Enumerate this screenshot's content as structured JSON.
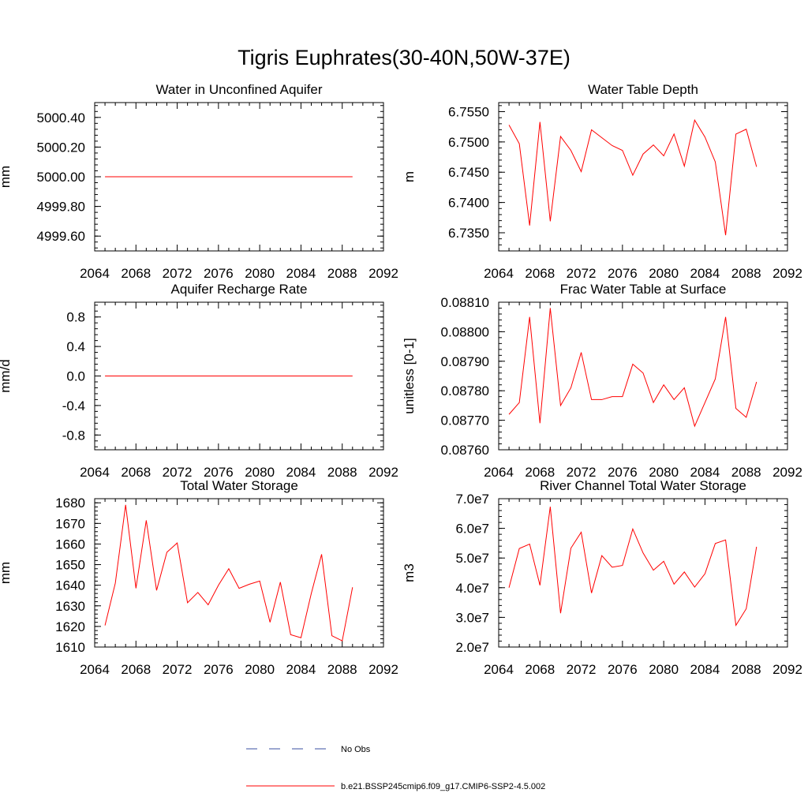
{
  "title": "Tigris Euphrates(30-40N,50W-37E)",
  "legend": [
    {
      "label": "No Obs",
      "color": "#3a4fa0",
      "dash": "dashed"
    },
    {
      "label": "b.e21.BSSP245cmip6.f09_g17.CMIP6-SSP2-4.5.002",
      "color": "#ff0000",
      "dash": "solid"
    }
  ],
  "chart_data": [
    {
      "type": "line",
      "title": "Water in Unconfined Aquifer",
      "xlabel": "",
      "ylabel": "mm",
      "xlim": [
        2064,
        2092
      ],
      "ylim": [
        4999.5,
        5000.5
      ],
      "xticks": [
        2064,
        2068,
        2072,
        2076,
        2080,
        2084,
        2088,
        2092
      ],
      "yticks": [
        4999.6,
        4999.8,
        5000.0,
        5000.2,
        5000.4
      ],
      "ytick_labels": [
        "4999.60",
        "4999.80",
        "5000.00",
        "5000.20",
        "5000.40"
      ],
      "x": [
        2065,
        2066,
        2067,
        2068,
        2069,
        2070,
        2071,
        2072,
        2073,
        2074,
        2075,
        2076,
        2077,
        2078,
        2079,
        2080,
        2081,
        2082,
        2083,
        2084,
        2085,
        2086,
        2087,
        2088,
        2089
      ],
      "series": [
        {
          "name": "b.e21.BSSP245cmip6.f09_g17.CMIP6-SSP2-4.5.002",
          "color": "#ff0000",
          "values": [
            5000,
            5000,
            5000,
            5000,
            5000,
            5000,
            5000,
            5000,
            5000,
            5000,
            5000,
            5000,
            5000,
            5000,
            5000,
            5000,
            5000,
            5000,
            5000,
            5000,
            5000,
            5000,
            5000,
            5000,
            5000
          ]
        }
      ]
    },
    {
      "type": "line",
      "title": "Water Table Depth",
      "xlabel": "",
      "ylabel": "m",
      "xlim": [
        2064,
        2092
      ],
      "ylim": [
        6.732,
        6.7565
      ],
      "xticks": [
        2064,
        2068,
        2072,
        2076,
        2080,
        2084,
        2088,
        2092
      ],
      "yticks": [
        6.735,
        6.74,
        6.745,
        6.75,
        6.755
      ],
      "ytick_labels": [
        "6.7350",
        "6.7400",
        "6.7450",
        "6.7500",
        "6.7550"
      ],
      "x": [
        2065,
        2066,
        2067,
        2068,
        2069,
        2070,
        2071,
        2072,
        2073,
        2074,
        2075,
        2076,
        2077,
        2078,
        2079,
        2080,
        2081,
        2082,
        2083,
        2084,
        2085,
        2086,
        2087,
        2088,
        2089
      ],
      "series": [
        {
          "name": "b.e21.BSSP245cmip6.f09_g17.CMIP6-SSP2-4.5.002",
          "color": "#ff0000",
          "values": [
            6.7528,
            6.7497,
            6.7362,
            6.7533,
            6.7369,
            6.7509,
            6.7486,
            6.7451,
            6.752,
            6.7507,
            6.7494,
            6.7486,
            6.7445,
            6.748,
            6.7495,
            6.7477,
            6.7513,
            6.746,
            6.7536,
            6.7508,
            6.7467,
            6.7346,
            6.7513,
            6.7521,
            6.7459
          ]
        }
      ]
    },
    {
      "type": "line",
      "title": "Aquifer Recharge Rate",
      "xlabel": "",
      "ylabel": "mm/d",
      "xlim": [
        2064,
        2092
      ],
      "ylim": [
        -1.0,
        1.0
      ],
      "xticks": [
        2064,
        2068,
        2072,
        2076,
        2080,
        2084,
        2088,
        2092
      ],
      "yticks": [
        -0.8,
        -0.4,
        0.0,
        0.4,
        0.8
      ],
      "ytick_labels": [
        "-0.8",
        "-0.4",
        "0.0",
        "0.4",
        "0.8"
      ],
      "x": [
        2065,
        2066,
        2067,
        2068,
        2069,
        2070,
        2071,
        2072,
        2073,
        2074,
        2075,
        2076,
        2077,
        2078,
        2079,
        2080,
        2081,
        2082,
        2083,
        2084,
        2085,
        2086,
        2087,
        2088,
        2089
      ],
      "series": [
        {
          "name": "b.e21.BSSP245cmip6.f09_g17.CMIP6-SSP2-4.5.002",
          "color": "#ff0000",
          "values": [
            0,
            0,
            0,
            0,
            0,
            0,
            0,
            0,
            0,
            0,
            0,
            0,
            0,
            0,
            0,
            0,
            0,
            0,
            0,
            0,
            0,
            0,
            0,
            0,
            0
          ]
        }
      ]
    },
    {
      "type": "line",
      "title": "Frac Water Table at Surface",
      "xlabel": "",
      "ylabel": "unitless [0-1]",
      "xlim": [
        2064,
        2092
      ],
      "ylim": [
        0.0876,
        0.0881
      ],
      "xticks": [
        2064,
        2068,
        2072,
        2076,
        2080,
        2084,
        2088,
        2092
      ],
      "yticks": [
        0.0876,
        0.0877,
        0.0878,
        0.0879,
        0.088,
        0.0881
      ],
      "ytick_labels": [
        "0.08760",
        "0.08770",
        "0.08780",
        "0.08790",
        "0.08800",
        "0.08810"
      ],
      "x": [
        2065,
        2066,
        2067,
        2068,
        2069,
        2070,
        2071,
        2072,
        2073,
        2074,
        2075,
        2076,
        2077,
        2078,
        2079,
        2080,
        2081,
        2082,
        2083,
        2084,
        2085,
        2086,
        2087,
        2088,
        2089
      ],
      "series": [
        {
          "name": "b.e21.BSSP245cmip6.f09_g17.CMIP6-SSP2-4.5.002",
          "color": "#ff0000",
          "values": [
            0.08772,
            0.08776,
            0.08805,
            0.08769,
            0.08808,
            0.08775,
            0.08781,
            0.08793,
            0.08777,
            0.08777,
            0.08778,
            0.08778,
            0.08789,
            0.08786,
            0.08776,
            0.08782,
            0.08777,
            0.08781,
            0.08768,
            0.08776,
            0.08784,
            0.08805,
            0.08774,
            0.08771,
            0.08783
          ]
        }
      ]
    },
    {
      "type": "line",
      "title": "Total Water Storage",
      "xlabel": "",
      "ylabel": "mm",
      "xlim": [
        2064,
        2092
      ],
      "ylim": [
        1610,
        1682
      ],
      "xticks": [
        2064,
        2068,
        2072,
        2076,
        2080,
        2084,
        2088,
        2092
      ],
      "yticks": [
        1610,
        1620,
        1630,
        1640,
        1650,
        1660,
        1670,
        1680
      ],
      "ytick_labels": [
        "1610",
        "1620",
        "1630",
        "1640",
        "1650",
        "1660",
        "1670",
        "1680"
      ],
      "x": [
        2065,
        2066,
        2067,
        2068,
        2069,
        2070,
        2071,
        2072,
        2073,
        2074,
        2075,
        2076,
        2077,
        2078,
        2079,
        2080,
        2081,
        2082,
        2083,
        2084,
        2085,
        2086,
        2087,
        2088,
        2089
      ],
      "series": [
        {
          "name": "b.e21.BSSP245cmip6.f09_g17.CMIP6-SSP2-4.5.002",
          "color": "#ff0000",
          "values": [
            1620.5,
            1641,
            1679,
            1638.5,
            1671.5,
            1637.5,
            1656,
            1660.5,
            1631.5,
            1636.5,
            1630.5,
            1640,
            1648,
            1638.5,
            1640.5,
            1642,
            1622,
            1641.5,
            1616,
            1614.5,
            1636,
            1655,
            1615.5,
            1613,
            1639
          ]
        }
      ]
    },
    {
      "type": "line",
      "title": "River Channel Total Water Storage",
      "xlabel": "",
      "ylabel": "m3",
      "xlim": [
        2064,
        2092
      ],
      "ylim": [
        20000000,
        70000000
      ],
      "xticks": [
        2064,
        2068,
        2072,
        2076,
        2080,
        2084,
        2088,
        2092
      ],
      "yticks": [
        20000000,
        30000000,
        40000000,
        50000000,
        60000000,
        70000000
      ],
      "ytick_labels": [
        "2.0e7",
        "3.0e7",
        "4.0e7",
        "5.0e7",
        "6.0e7",
        "7.0e7"
      ],
      "x": [
        2065,
        2066,
        2067,
        2068,
        2069,
        2070,
        2071,
        2072,
        2073,
        2074,
        2075,
        2076,
        2077,
        2078,
        2079,
        2080,
        2081,
        2082,
        2083,
        2084,
        2085,
        2086,
        2087,
        2088,
        2089
      ],
      "series": [
        {
          "name": "b.e21.BSSP245cmip6.f09_g17.CMIP6-SSP2-4.5.002",
          "color": "#ff0000",
          "values": [
            40000000,
            53200000,
            54700000,
            40800000,
            67300000,
            31400000,
            53300000,
            58700000,
            38200000,
            50800000,
            46900000,
            47500000,
            59800000,
            51700000,
            45900000,
            48900000,
            41200000,
            45300000,
            40200000,
            44700000,
            54900000,
            56100000,
            27300000,
            32900000,
            53800000
          ]
        }
      ]
    }
  ]
}
